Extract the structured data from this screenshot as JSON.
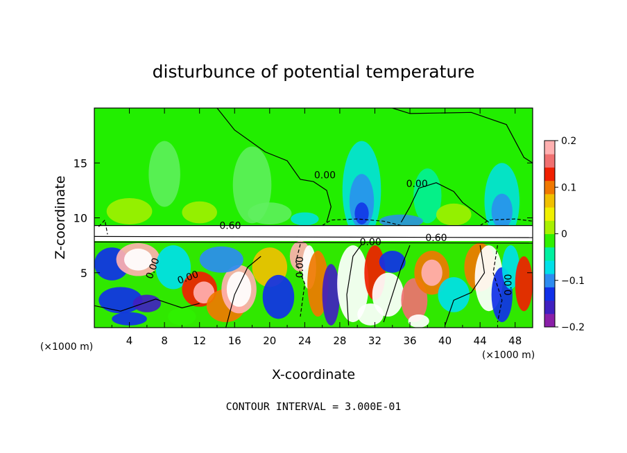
{
  "chart_data": {
    "type": "heatmap",
    "title": "disturbunce of potential temperature",
    "xlabel": "X-coordinate",
    "ylabel": "Z-coordinate",
    "x_unit_left": "(×1000 m)",
    "x_unit_right": "(×1000 m)",
    "xlim": [
      0,
      50
    ],
    "ylim": [
      0,
      20
    ],
    "x_ticks": [
      "4",
      "8",
      "12",
      "16",
      "20",
      "24",
      "28",
      "32",
      "36",
      "40",
      "44",
      "48"
    ],
    "y_ticks": [
      "5",
      "10",
      "15"
    ],
    "colorbar": {
      "range": [
        -0.2,
        0.2
      ],
      "tick_labels": [
        "0.2",
        "0.1",
        "0",
        "−0.1",
        "−0.2"
      ],
      "colors": [
        "#8a1fa8",
        "#4020c0",
        "#1030e8",
        "#2d8cf0",
        "#00e0e8",
        "#00f0a0",
        "#30f000",
        "#a8f000",
        "#f0f000",
        "#f0c000",
        "#f07800",
        "#f02000",
        "#f07070",
        "#ffb0b0"
      ]
    },
    "contour_labels": [
      "0.00",
      "0.00",
      "0.60",
      "0.60",
      "0.00",
      "0.00",
      "0.00",
      "0.00",
      "0.00"
    ],
    "footer": "CONTOUR INTERVAL = 3.000E-01"
  }
}
